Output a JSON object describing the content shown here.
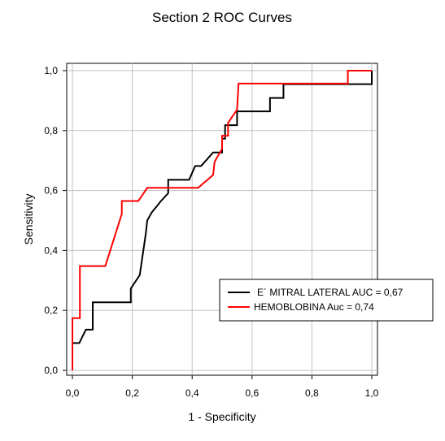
{
  "chart_data": {
    "type": "line",
    "title": "Section 2 ROC Curves",
    "xlabel": "1 - Specificity",
    "ylabel": "Sensitivity",
    "xlim": [
      0,
      1
    ],
    "ylim": [
      0,
      1
    ],
    "xticks": [
      0,
      0.2,
      0.4,
      0.6,
      0.8,
      1.0
    ],
    "yticks": [
      0,
      0.2,
      0.4,
      0.6,
      0.8,
      1.0
    ],
    "xtick_labels": [
      "0,0",
      "0,2",
      "0,4",
      "0,6",
      "0,8",
      "1,0"
    ],
    "ytick_labels": [
      "0,0",
      "0,2",
      "0,4",
      "0,6",
      "0,8",
      "1,0"
    ],
    "grid": true,
    "legend_position": "center-right",
    "legend": [
      "E´ MITRAL LATERAL  AUC = 0,67",
      "HEMOBLOBINA Auc = 0,74"
    ],
    "series": [
      {
        "color": "#000000",
        "points": [
          [
            0.0,
            0.0
          ],
          [
            0.0,
            0.091
          ],
          [
            0.023,
            0.091
          ],
          [
            0.045,
            0.136
          ],
          [
            0.068,
            0.136
          ],
          [
            0.068,
            0.227
          ],
          [
            0.195,
            0.227
          ],
          [
            0.195,
            0.273
          ],
          [
            0.225,
            0.318
          ],
          [
            0.245,
            0.455
          ],
          [
            0.25,
            0.5
          ],
          [
            0.265,
            0.527
          ],
          [
            0.28,
            0.545
          ],
          [
            0.295,
            0.564
          ],
          [
            0.32,
            0.591
          ],
          [
            0.32,
            0.636
          ],
          [
            0.39,
            0.636
          ],
          [
            0.41,
            0.682
          ],
          [
            0.43,
            0.682
          ],
          [
            0.47,
            0.727
          ],
          [
            0.5,
            0.727
          ],
          [
            0.5,
            0.773
          ],
          [
            0.51,
            0.773
          ],
          [
            0.51,
            0.818
          ],
          [
            0.55,
            0.818
          ],
          [
            0.55,
            0.864
          ],
          [
            0.66,
            0.864
          ],
          [
            0.66,
            0.909
          ],
          [
            0.705,
            0.909
          ],
          [
            0.705,
            0.955
          ],
          [
            0.955,
            0.955
          ],
          [
            1.0,
            0.955
          ],
          [
            1.0,
            1.0
          ]
        ]
      },
      {
        "color": "#ff0000",
        "points": [
          [
            0.0,
            0.0
          ],
          [
            0.0,
            0.174
          ],
          [
            0.025,
            0.174
          ],
          [
            0.025,
            0.348
          ],
          [
            0.11,
            0.348
          ],
          [
            0.165,
            0.522
          ],
          [
            0.165,
            0.565
          ],
          [
            0.22,
            0.565
          ],
          [
            0.25,
            0.609
          ],
          [
            0.42,
            0.609
          ],
          [
            0.47,
            0.652
          ],
          [
            0.475,
            0.696
          ],
          [
            0.5,
            0.739
          ],
          [
            0.5,
            0.783
          ],
          [
            0.52,
            0.783
          ],
          [
            0.52,
            0.826
          ],
          [
            0.55,
            0.87
          ],
          [
            0.555,
            0.957
          ],
          [
            0.92,
            0.957
          ],
          [
            0.92,
            1.0
          ],
          [
            1.0,
            1.0
          ]
        ]
      }
    ]
  }
}
